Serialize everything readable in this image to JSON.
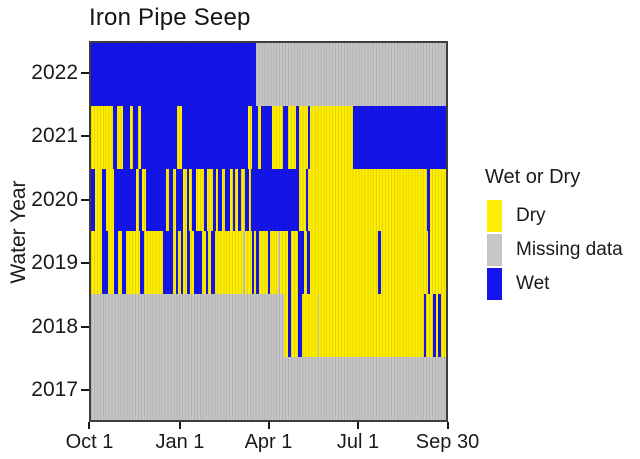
{
  "chart_data": {
    "type": "heatmap",
    "title": "Iron Pipe Seep",
    "ylabel": "Water Year",
    "x_axis": {
      "tick_labels": [
        "Oct 1",
        "Jan 1",
        "Apr 1",
        "Jul 1",
        "Sep 30"
      ],
      "tick_days": [
        0,
        92,
        182,
        273,
        364
      ],
      "days_per_row": 365
    },
    "y_axis": {
      "tick_labels": [
        "2022",
        "2021",
        "2020",
        "2019",
        "2018",
        "2017"
      ]
    },
    "legend": {
      "title": "Wet or Dry",
      "entries": [
        {
          "label": "Dry",
          "status": "dry"
        },
        {
          "label": "Missing data",
          "status": "missing"
        },
        {
          "label": "Wet",
          "status": "wet"
        }
      ]
    },
    "colors": {
      "dry": "#ffee00",
      "missing": "#c6c6c6",
      "wet": "#1414ee"
    },
    "rows": [
      {
        "year": "2022",
        "runs": [
          [
            "wet",
            170
          ],
          [
            "missing",
            195
          ]
        ]
      },
      {
        "year": "2021",
        "runs": [
          [
            "dry",
            23
          ],
          [
            "wet",
            4
          ],
          [
            "dry",
            6
          ],
          [
            "wet",
            7
          ],
          [
            "dry",
            3
          ],
          [
            "wet",
            5
          ],
          [
            "dry",
            3
          ],
          [
            "wet",
            37
          ],
          [
            "dry",
            6
          ],
          [
            "wet",
            68
          ],
          [
            "dry",
            4
          ],
          [
            "wet",
            6
          ],
          [
            "dry",
            3
          ],
          [
            "wet",
            11
          ],
          [
            "dry",
            12
          ],
          [
            "wet",
            5
          ],
          [
            "dry",
            8
          ],
          [
            "wet",
            3
          ],
          [
            "dry",
            9
          ],
          [
            "wet",
            2
          ],
          [
            "dry",
            45
          ],
          [
            "wet",
            95
          ]
        ]
      },
      {
        "year": "2020",
        "runs": [
          [
            "wet",
            4
          ],
          [
            "dry",
            7
          ],
          [
            "wet",
            4
          ],
          [
            "dry",
            9
          ],
          [
            "wet",
            22
          ],
          [
            "dry",
            3
          ],
          [
            "wet",
            4
          ],
          [
            "dry",
            4
          ],
          [
            "wet",
            20
          ],
          [
            "dry",
            3
          ],
          [
            "wet",
            4
          ],
          [
            "dry",
            4
          ],
          [
            "wet",
            7
          ],
          [
            "dry",
            4
          ],
          [
            "wet",
            2
          ],
          [
            "dry",
            3
          ],
          [
            "wet",
            4
          ],
          [
            "dry",
            8
          ],
          [
            "wet",
            3
          ],
          [
            "dry",
            7
          ],
          [
            "wet",
            3
          ],
          [
            "dry",
            2
          ],
          [
            "wet",
            4
          ],
          [
            "dry",
            3
          ],
          [
            "wet",
            5
          ],
          [
            "dry",
            3
          ],
          [
            "wet",
            2
          ],
          [
            "dry",
            3
          ],
          [
            "wet",
            4
          ],
          [
            "dry",
            4
          ],
          [
            "wet",
            4
          ],
          [
            "dry",
            2
          ],
          [
            "wet",
            49
          ],
          [
            "dry",
            7
          ],
          [
            "wet",
            3
          ],
          [
            "dry",
            122
          ],
          [
            "wet",
            3
          ],
          [
            "dry",
            16
          ]
        ]
      },
      {
        "year": "2019",
        "runs": [
          [
            "dry",
            11
          ],
          [
            "wet",
            7
          ],
          [
            "dry",
            6
          ],
          [
            "wet",
            4
          ],
          [
            "dry",
            4
          ],
          [
            "wet",
            4
          ],
          [
            "dry",
            14
          ],
          [
            "wet",
            5
          ],
          [
            "dry",
            19
          ],
          [
            "wet",
            10
          ],
          [
            "dry",
            3
          ],
          [
            "wet",
            3
          ],
          [
            "dry",
            3
          ],
          [
            "wet",
            2
          ],
          [
            "dry",
            4
          ],
          [
            "wet",
            3
          ],
          [
            "dry",
            4
          ],
          [
            "wet",
            8
          ],
          [
            "dry",
            4
          ],
          [
            "wet",
            3
          ],
          [
            "dry",
            3
          ],
          [
            "wet",
            4
          ],
          [
            "dry",
            29
          ],
          [
            "missing",
            2
          ],
          [
            "dry",
            7
          ],
          [
            "wet",
            2
          ],
          [
            "dry",
            2
          ],
          [
            "wet",
            3
          ],
          [
            "dry",
            9
          ],
          [
            "wet",
            2
          ],
          [
            "dry",
            9
          ],
          [
            "missing",
            2
          ],
          [
            "dry",
            8
          ],
          [
            "wet",
            3
          ],
          [
            "dry",
            7
          ],
          [
            "wet",
            6
          ],
          [
            "dry",
            3
          ],
          [
            "wet",
            4
          ],
          [
            "dry",
            70
          ],
          [
            "wet",
            3
          ],
          [
            "dry",
            48
          ],
          [
            "wet",
            2
          ],
          [
            "dry",
            16
          ]
        ]
      },
      {
        "year": "2018",
        "runs": [
          [
            "missing",
            198
          ],
          [
            "dry",
            5
          ],
          [
            "wet",
            3
          ],
          [
            "dry",
            7
          ],
          [
            "wet",
            4
          ],
          [
            "dry",
            16
          ],
          [
            "missing",
            2
          ],
          [
            "dry",
            107
          ],
          [
            "wet",
            3
          ],
          [
            "dry",
            7
          ],
          [
            "wet",
            3
          ],
          [
            "dry",
            2
          ],
          [
            "wet",
            3
          ],
          [
            "dry",
            5
          ]
        ]
      },
      {
        "year": "2017",
        "runs": [
          [
            "missing",
            365
          ]
        ]
      }
    ]
  }
}
